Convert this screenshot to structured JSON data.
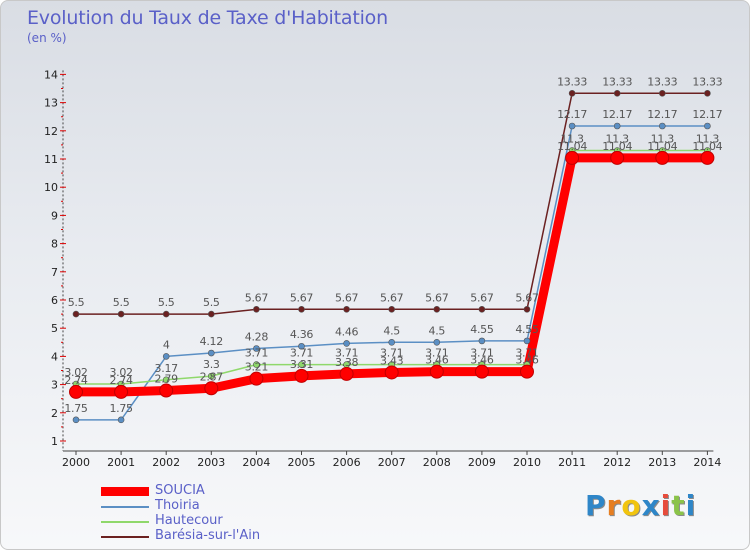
{
  "header": {
    "title": "Evolution du Taux de Taxe d'Habitation",
    "unit": "(en %)"
  },
  "chart_data": {
    "type": "line",
    "title": "Evolution du Taux de Taxe d'Habitation",
    "ylabel": "(en %)",
    "xlabel": "",
    "x": [
      "2000",
      "2001",
      "2002",
      "2003",
      "2004",
      "2005",
      "2006",
      "2007",
      "2008",
      "2009",
      "2010",
      "2011",
      "2012",
      "2013",
      "2014"
    ],
    "ylim": [
      1,
      14
    ],
    "yticks": [
      1,
      2,
      3,
      4,
      5,
      6,
      7,
      8,
      9,
      10,
      11,
      12,
      13,
      14
    ],
    "grid": false,
    "legend_position": "bottom-left",
    "series": [
      {
        "name": "Barésia-sur-l'Ain",
        "color": "#6b2121",
        "values": [
          5.5,
          5.5,
          5.5,
          5.5,
          5.67,
          5.67,
          5.67,
          5.67,
          5.67,
          5.67,
          5.67,
          13.33,
          13.33,
          13.33,
          13.33
        ],
        "labels": [
          "5.5",
          "5.5",
          "5.5",
          "5.5",
          "5.67",
          "5.67",
          "5.67",
          "5.67",
          "5.67",
          "5.67",
          "5.67",
          "13.33",
          "13.33",
          "13.33",
          "13.33"
        ]
      },
      {
        "name": "Thoiria",
        "color": "#5b8fc4",
        "values": [
          1.75,
          1.75,
          4,
          4.12,
          4.28,
          4.36,
          4.46,
          4.5,
          4.5,
          4.55,
          4.55,
          12.17,
          12.17,
          12.17,
          12.17
        ],
        "labels": [
          "1.75",
          "1.75",
          "4",
          "4.12",
          "4.28",
          "4.36",
          "4.46",
          "4.5",
          "4.5",
          "4.55",
          "4.55",
          "12.17",
          "12.17",
          "12.17",
          "12.17"
        ]
      },
      {
        "name": "Hautecour",
        "color": "#8fd86b",
        "values": [
          3.02,
          3.02,
          3.17,
          3.3,
          3.71,
          3.71,
          3.71,
          3.71,
          3.71,
          3.71,
          3.71,
          11.3,
          11.3,
          11.3,
          11.3
        ],
        "labels": [
          "3.02",
          "3.02",
          "3.17",
          "3.3",
          "3.71",
          "3.71",
          "3.71",
          "3.71",
          "3.71",
          "3.71",
          "3.71",
          "11.3",
          "11.3",
          "11.3",
          "11.3"
        ]
      },
      {
        "name": "SOUCIA",
        "color": "#ff0000",
        "values": [
          2.74,
          2.74,
          2.79,
          2.87,
          3.21,
          3.31,
          3.38,
          3.43,
          3.46,
          3.46,
          3.46,
          11.04,
          11.04,
          11.04,
          11.04
        ],
        "labels": [
          "2.74",
          "2.74",
          "2.79",
          "2.87",
          "3.21",
          "3.31",
          "3.38",
          "3.43",
          "3.46",
          "3.46",
          "3.46",
          "11.04",
          "11.04",
          "11.04",
          "11.04"
        ]
      }
    ]
  },
  "legend": {
    "items": [
      {
        "name": "SOUCIA",
        "color": "#ff0000"
      },
      {
        "name": "Thoiria",
        "color": "#5b8fc4"
      },
      {
        "name": "Hautecour",
        "color": "#8fd86b"
      },
      {
        "name": "Barésia-sur-l'Ain",
        "color": "#6b2121"
      }
    ]
  },
  "brand": {
    "logo_letters": [
      "P",
      "r",
      "o",
      "x",
      "i",
      "t",
      "i"
    ],
    "logo_colors": [
      "#2e86c8",
      "#e67e22",
      "#f1c40f",
      "#2e86c8",
      "#e74c3c",
      "#8bc34a",
      "#2e86c8"
    ]
  }
}
